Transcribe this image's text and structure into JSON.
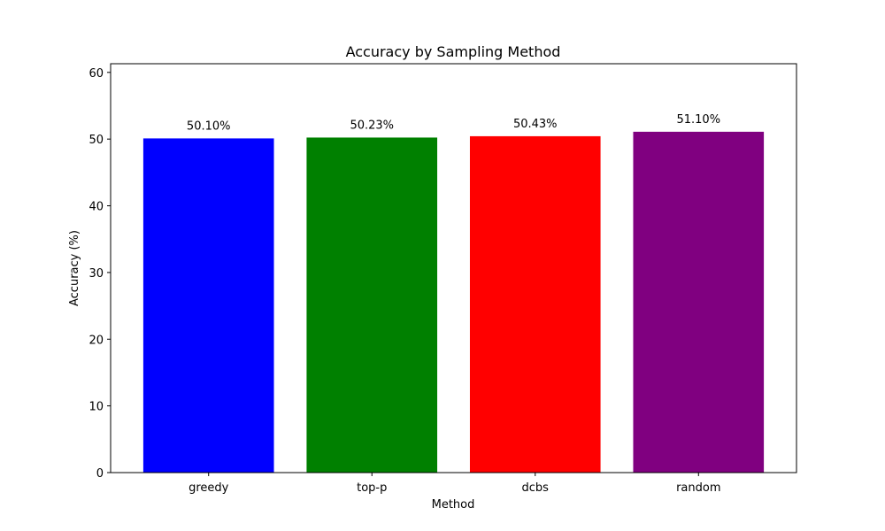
{
  "chart_data": {
    "type": "bar",
    "title": "Accuracy by Sampling Method",
    "xlabel": "Method",
    "ylabel": "Accuracy (%)",
    "categories": [
      "greedy",
      "top-p",
      "dcbs",
      "random"
    ],
    "values": [
      50.1,
      50.23,
      50.43,
      51.1
    ],
    "value_labels": [
      "50.10%",
      "50.23%",
      "50.43%",
      "51.10%"
    ],
    "colors": [
      "#0000ff",
      "#008000",
      "#ff0000",
      "#800080"
    ],
    "ylim": [
      0,
      61.3
    ],
    "yticks": [
      0,
      10,
      20,
      30,
      40,
      50,
      60
    ],
    "grid": false
  }
}
